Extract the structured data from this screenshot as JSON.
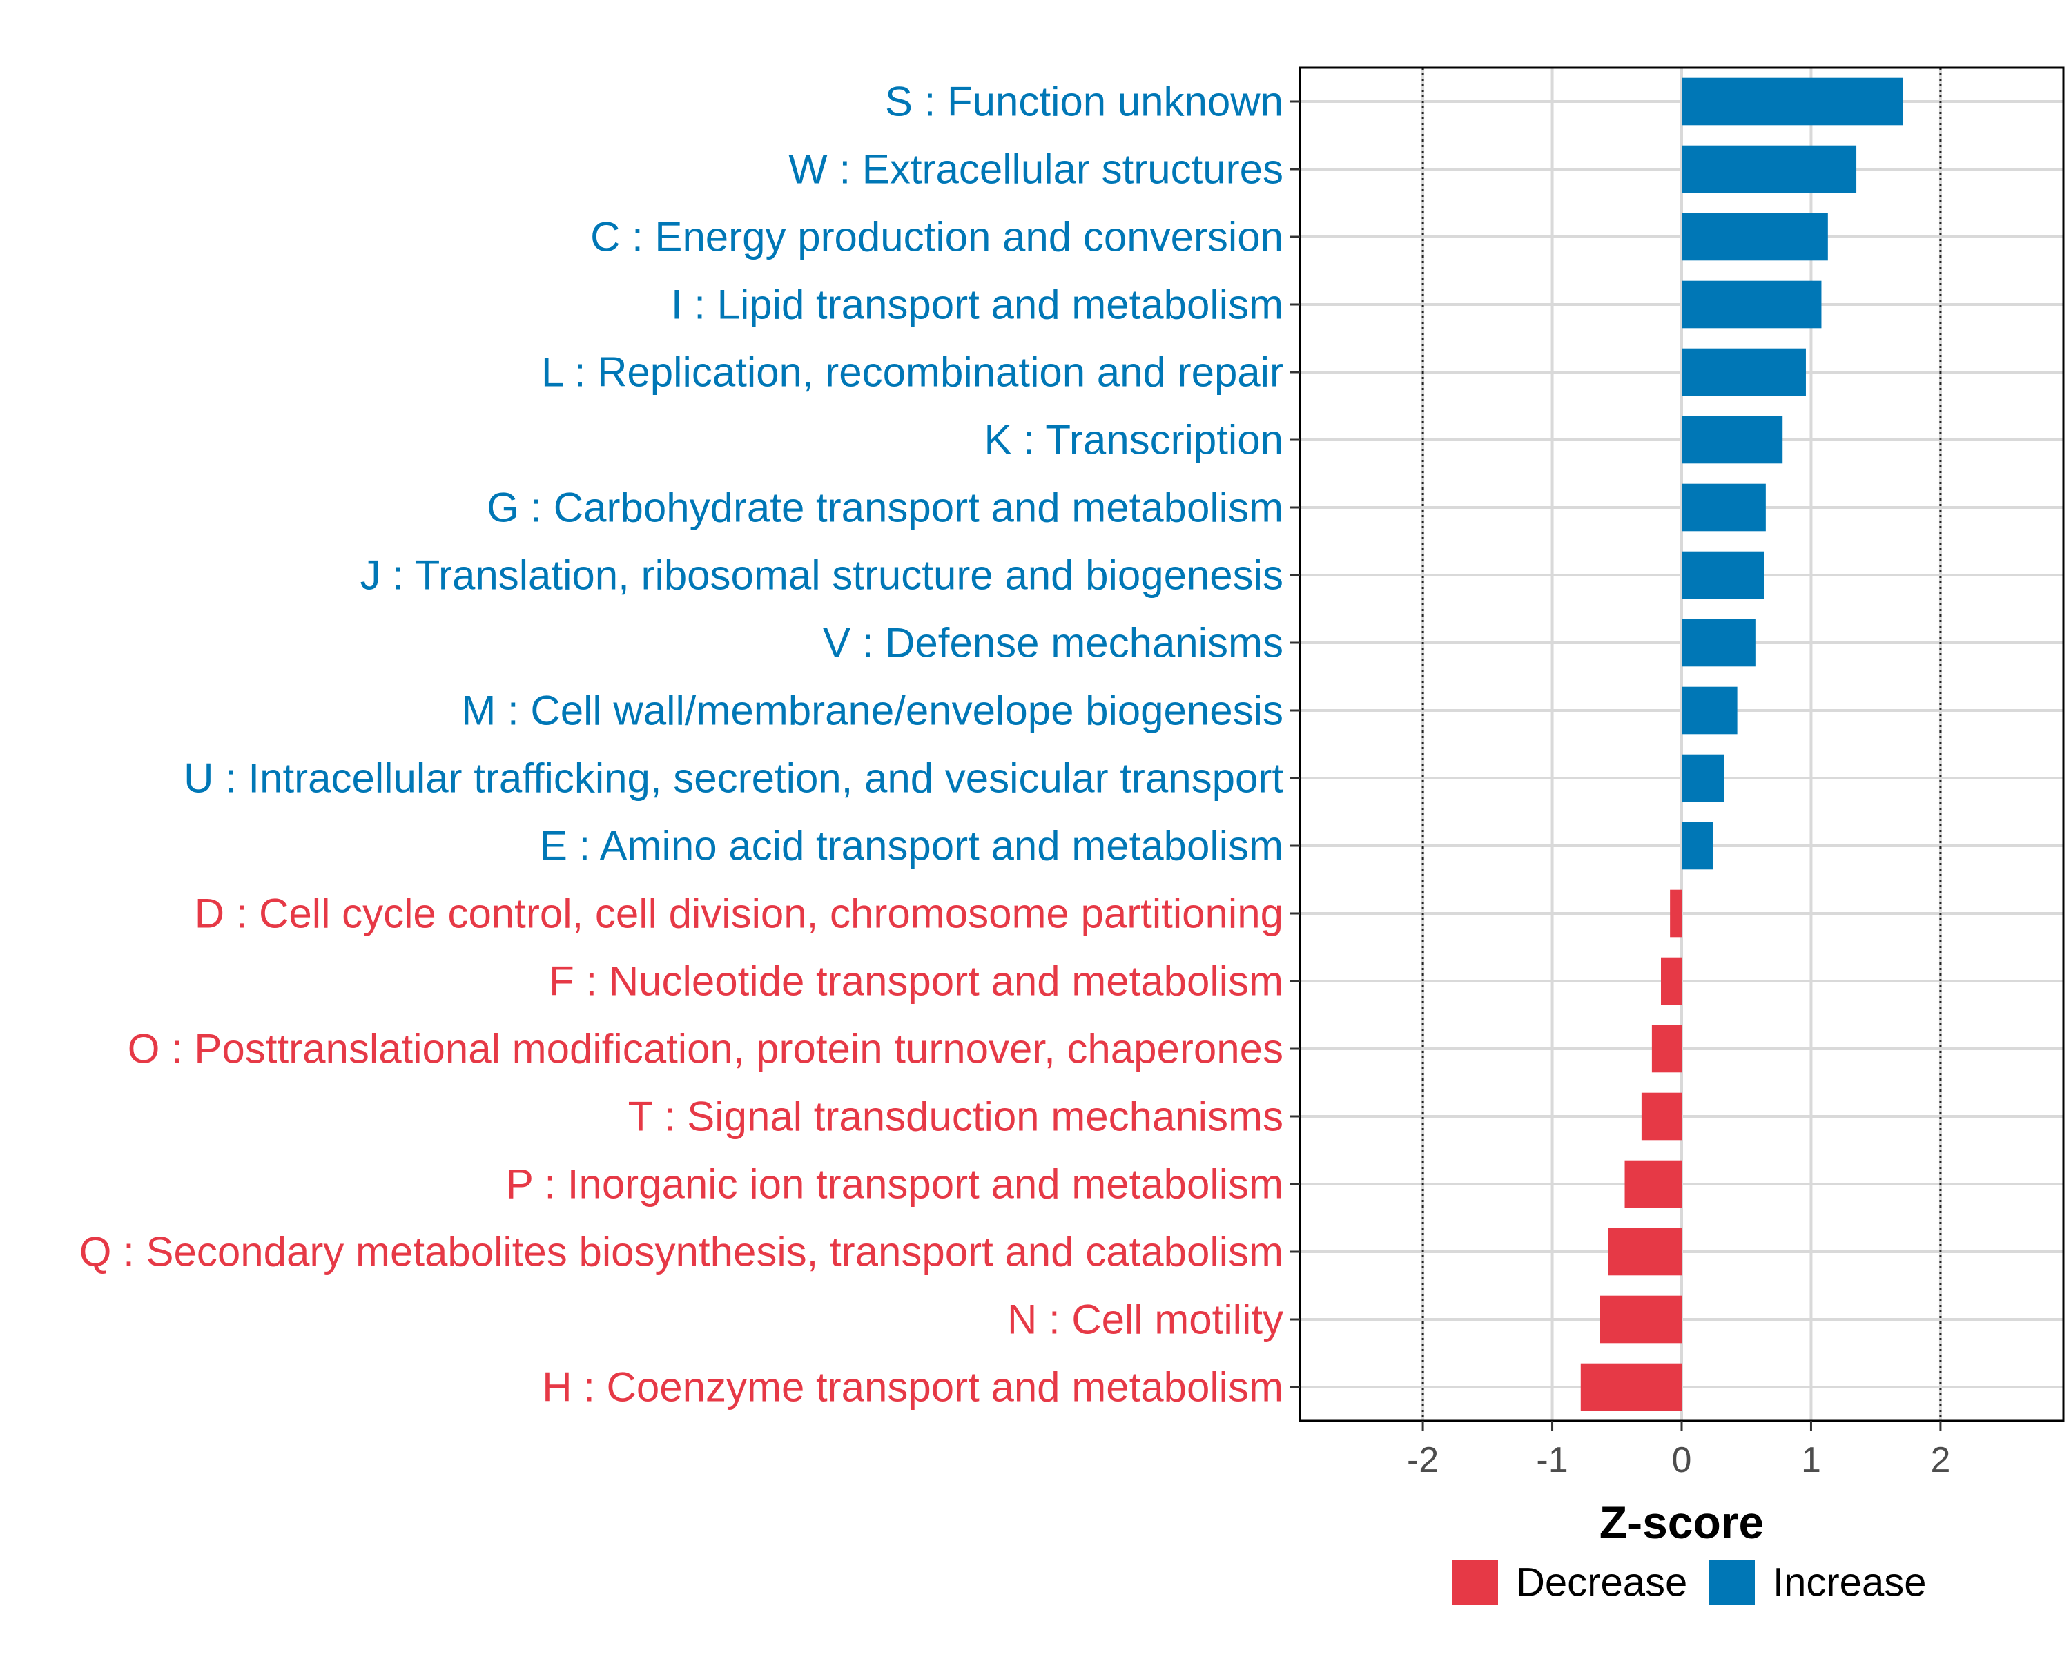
{
  "chart_data": {
    "type": "bar",
    "orientation": "horizontal",
    "title": "",
    "xlabel": "Z-score",
    "ylabel": "",
    "xlim": [
      -2.95,
      2.95
    ],
    "xticks": [
      -2,
      -1,
      0,
      1,
      2
    ],
    "xtick_labels": [
      "-2",
      "-1",
      "0",
      "1",
      "2"
    ],
    "reference_lines": [
      -2,
      2
    ],
    "grid": true,
    "legend_position": "bottom",
    "legend": [
      {
        "name": "Decrease",
        "color": "#E63946"
      },
      {
        "name": "Increase",
        "color": "#0077B6"
      }
    ],
    "colors": {
      "increase": "#0077B6",
      "decrease": "#E63946"
    },
    "categories": [
      "S : Function unknown",
      "W : Extracellular structures",
      "C : Energy production and conversion",
      "I : Lipid transport and metabolism",
      "L : Replication, recombination and repair",
      "K : Transcription",
      "G : Carbohydrate transport and metabolism",
      "J : Translation, ribosomal structure and biogenesis",
      "V : Defense mechanisms",
      "M : Cell wall/membrane/envelope biogenesis",
      "U : Intracellular trafficking, secretion, and vesicular transport",
      "E : Amino acid transport and metabolism",
      "D : Cell cycle control, cell division, chromosome partitioning",
      "F : Nucleotide transport and metabolism",
      "O : Posttranslational modification, protein turnover, chaperones",
      "T : Signal transduction mechanisms",
      "P : Inorganic ion transport and metabolism",
      "Q : Secondary metabolites biosynthesis, transport and catabolism",
      "N : Cell motility",
      "H : Coenzyme transport and metabolism"
    ],
    "values": [
      1.71,
      1.35,
      1.13,
      1.08,
      0.96,
      0.78,
      0.65,
      0.64,
      0.57,
      0.43,
      0.33,
      0.24,
      -0.09,
      -0.16,
      -0.23,
      -0.31,
      -0.44,
      -0.57,
      -0.63,
      -0.78
    ],
    "groups": [
      "Increase",
      "Increase",
      "Increase",
      "Increase",
      "Increase",
      "Increase",
      "Increase",
      "Increase",
      "Increase",
      "Increase",
      "Increase",
      "Increase",
      "Decrease",
      "Decrease",
      "Decrease",
      "Decrease",
      "Decrease",
      "Decrease",
      "Decrease",
      "Decrease"
    ]
  }
}
